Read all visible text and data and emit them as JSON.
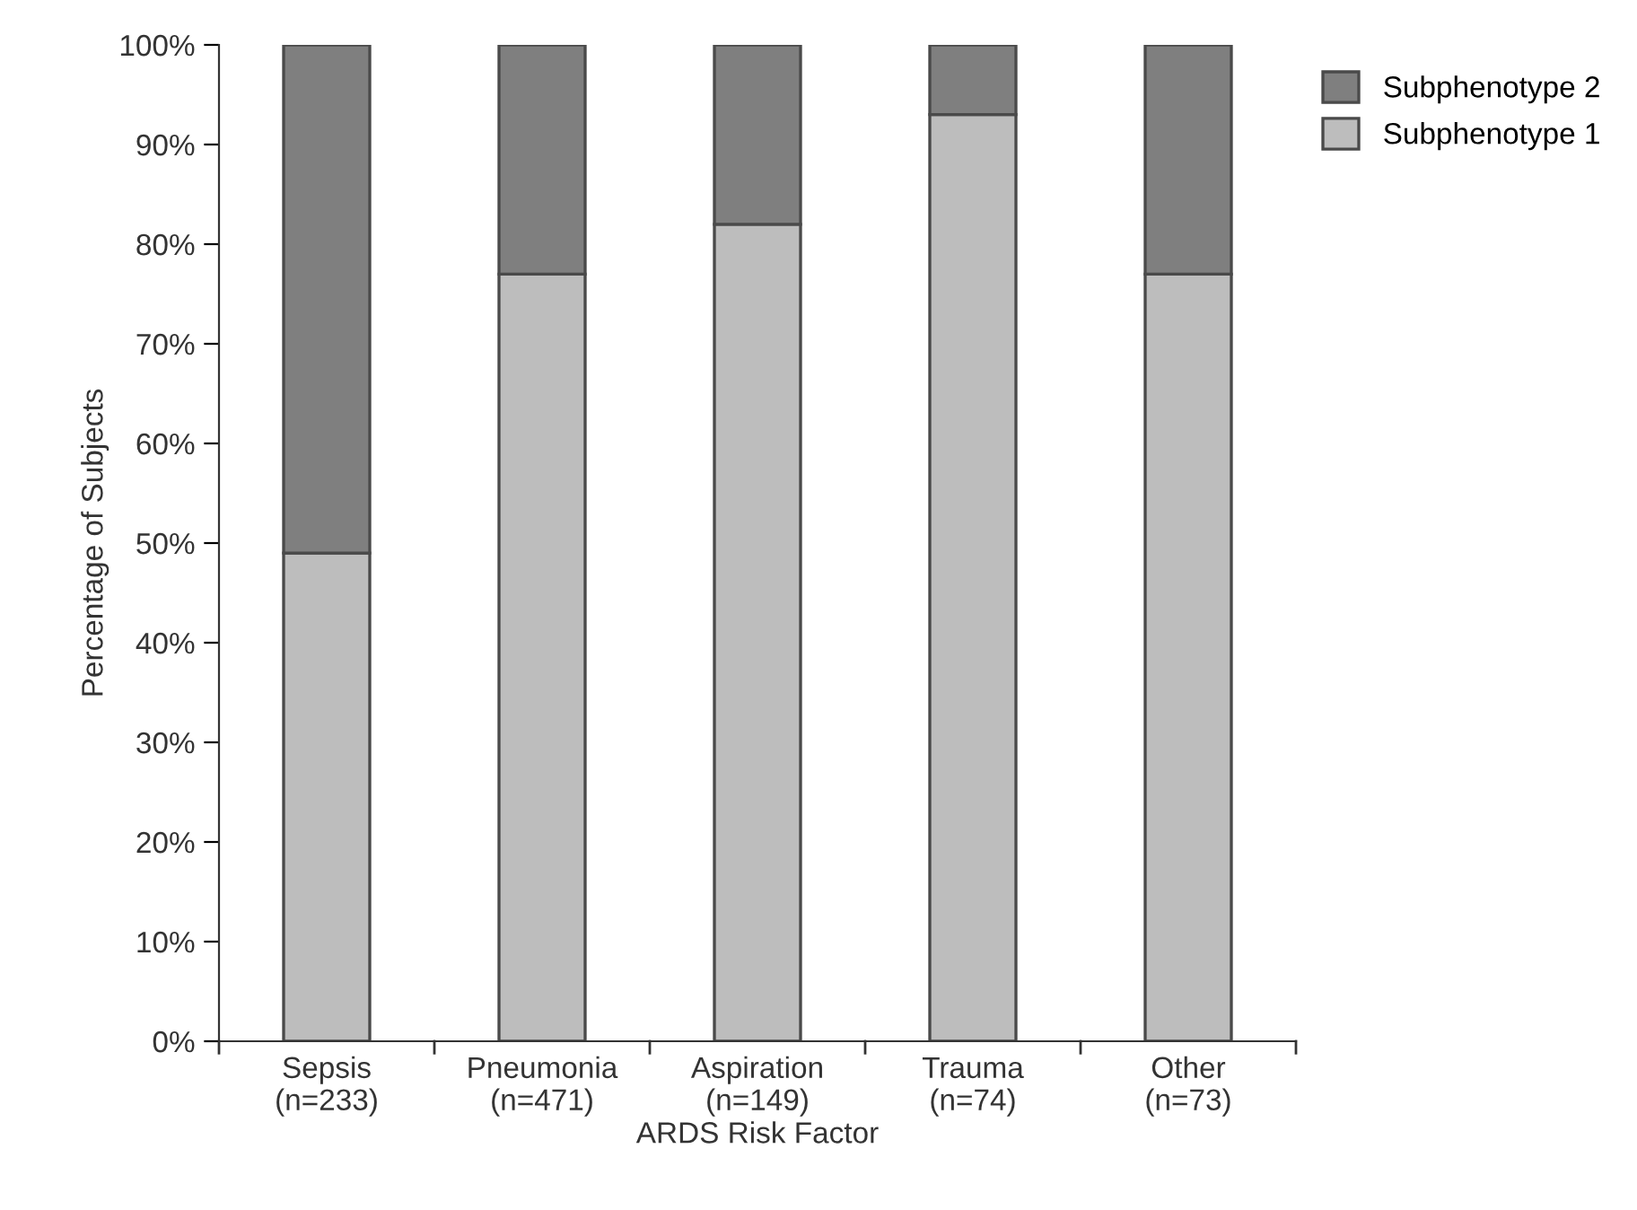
{
  "chart_data": {
    "type": "bar",
    "stacked": true,
    "xlabel": "ARDS Risk Factor",
    "ylabel": "Percentage of Subjects",
    "categories": [
      "Sepsis\n(n=233)",
      "Pneumonia\n(n=471)",
      "Aspiration\n(n=149)",
      "Trauma\n(n=74)",
      "Other\n(n=73)"
    ],
    "series": [
      {
        "name": "Subphenotype 1",
        "color": "#bdbdbd",
        "values": [
          49,
          77,
          82,
          93,
          77
        ]
      },
      {
        "name": "Subphenotype 2",
        "color": "#7f7f7f",
        "values": [
          51,
          23,
          18,
          7,
          23
        ]
      }
    ],
    "ylim": [
      0,
      100
    ],
    "yticks": [
      {
        "value": 0,
        "label": "0%"
      },
      {
        "value": 10,
        "label": "10%"
      },
      {
        "value": 20,
        "label": "20%"
      },
      {
        "value": 30,
        "label": "30%"
      },
      {
        "value": 40,
        "label": "40%"
      },
      {
        "value": 50,
        "label": "50%"
      },
      {
        "value": 60,
        "label": "60%"
      },
      {
        "value": 70,
        "label": "70%"
      },
      {
        "value": 80,
        "label": "80%"
      },
      {
        "value": 90,
        "label": "90%"
      },
      {
        "value": 100,
        "label": "100%"
      }
    ],
    "grid": false,
    "legend": "top right"
  }
}
